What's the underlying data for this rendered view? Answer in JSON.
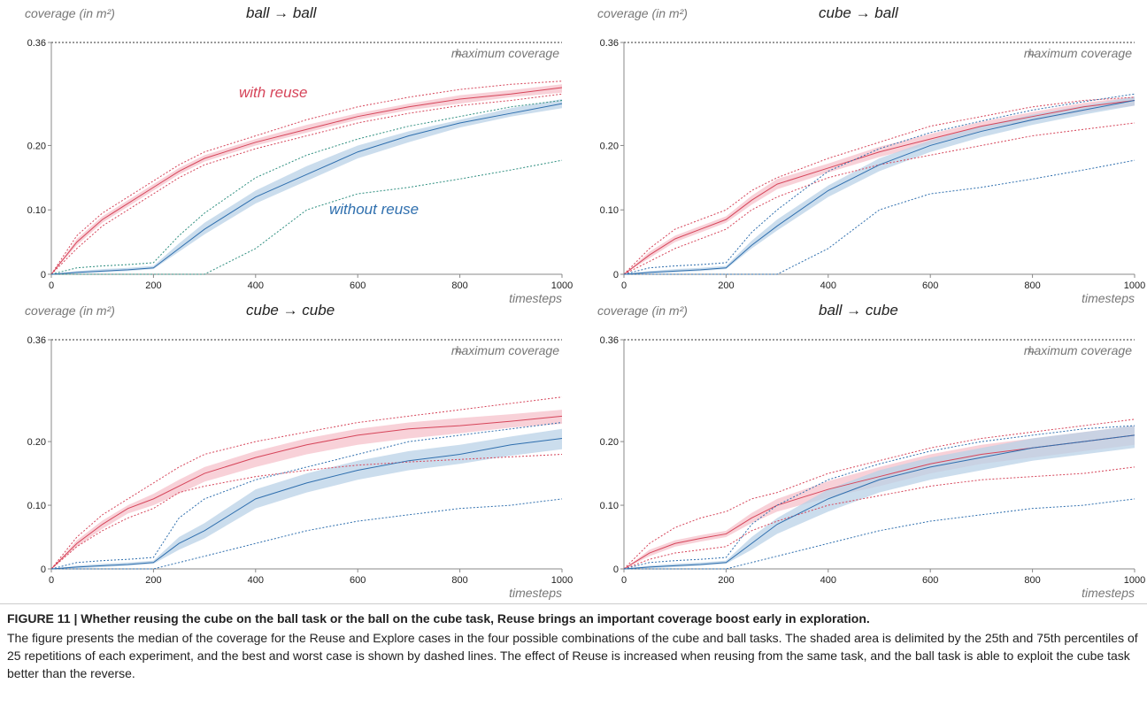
{
  "chart_data": [
    {
      "type": "line",
      "title": "ball → ball",
      "ylabel": "coverage (in m²)",
      "xlabel": "timesteps",
      "annotation": "maximum coverage",
      "x": [
        0,
        50,
        100,
        150,
        200,
        250,
        300,
        400,
        500,
        600,
        700,
        800,
        900,
        1000
      ],
      "xlim": [
        0,
        1000
      ],
      "ylim": [
        0,
        0.36
      ],
      "xticks": [
        0,
        200,
        400,
        600,
        800,
        1000
      ],
      "yticks": [
        0,
        {
          "value": 0.1,
          "label": "0.10"
        },
        {
          "value": 0.2,
          "label": "0.20"
        },
        0.36
      ],
      "series": [
        {
          "label": "with reuse",
          "color": "#d6455a",
          "band_color": "#f5c2cb",
          "dash_color": "#d6455a",
          "values": [
            0,
            0.05,
            0.085,
            0.11,
            0.135,
            0.16,
            0.18,
            0.205,
            0.225,
            0.245,
            0.26,
            0.272,
            0.28,
            0.29
          ],
          "p25": [
            0,
            0.045,
            0.08,
            0.105,
            0.13,
            0.155,
            0.175,
            0.2,
            0.22,
            0.24,
            0.255,
            0.265,
            0.275,
            0.282
          ],
          "p75": [
            0,
            0.055,
            0.09,
            0.115,
            0.14,
            0.165,
            0.185,
            0.21,
            0.232,
            0.25,
            0.265,
            0.278,
            0.286,
            0.295
          ],
          "best": [
            0,
            0.06,
            0.095,
            0.12,
            0.145,
            0.17,
            0.19,
            0.215,
            0.24,
            0.26,
            0.275,
            0.287,
            0.295,
            0.3
          ],
          "worst": [
            0,
            0.04,
            0.075,
            0.1,
            0.125,
            0.15,
            0.17,
            0.195,
            0.215,
            0.235,
            0.25,
            0.262,
            0.27,
            0.28
          ]
        },
        {
          "label": "without reuse",
          "color": "#2f6fae",
          "band_color": "#b9d1e7",
          "dash_color": "#2f8f80",
          "values": [
            0,
            0.003,
            0.005,
            0.007,
            0.01,
            0.04,
            0.07,
            0.12,
            0.155,
            0.19,
            0.215,
            0.235,
            0.25,
            0.265
          ],
          "p25": [
            0,
            0.001,
            0.003,
            0.005,
            0.008,
            0.035,
            0.062,
            0.11,
            0.145,
            0.18,
            0.205,
            0.228,
            0.245,
            0.258
          ],
          "p75": [
            0,
            0.005,
            0.008,
            0.01,
            0.013,
            0.048,
            0.08,
            0.13,
            0.168,
            0.2,
            0.222,
            0.24,
            0.258,
            0.272
          ],
          "best": [
            0,
            0.01,
            0.013,
            0.015,
            0.018,
            0.06,
            0.095,
            0.15,
            0.185,
            0.21,
            0.23,
            0.245,
            0.26,
            0.27
          ],
          "worst": [
            0,
            0,
            0,
            0,
            0,
            0,
            0,
            0.04,
            0.1,
            0.125,
            0.135,
            0.148,
            0.162,
            0.177
          ]
        }
      ]
    },
    {
      "type": "line",
      "title": "cube → ball",
      "ylabel": "coverage (in m²)",
      "xlabel": "timesteps",
      "annotation": "maximum coverage",
      "x": [
        0,
        50,
        100,
        150,
        200,
        250,
        300,
        400,
        500,
        600,
        700,
        800,
        900,
        1000
      ],
      "xlim": [
        0,
        1000
      ],
      "ylim": [
        0,
        0.36
      ],
      "xticks": [
        0,
        200,
        400,
        600,
        800,
        1000
      ],
      "yticks": [
        0,
        {
          "value": 0.1,
          "label": "0.10"
        },
        {
          "value": 0.2,
          "label": "0.20"
        },
        0.36
      ],
      "series": [
        {
          "color": "#d6455a",
          "band_color": "#f5c2cb",
          "dash_color": "#d6455a",
          "values": [
            0,
            0.03,
            0.055,
            0.07,
            0.085,
            0.115,
            0.14,
            0.165,
            0.19,
            0.21,
            0.23,
            0.245,
            0.26,
            0.27
          ],
          "p25": [
            0,
            0.025,
            0.05,
            0.065,
            0.08,
            0.108,
            0.132,
            0.158,
            0.182,
            0.202,
            0.222,
            0.238,
            0.252,
            0.262
          ],
          "p75": [
            0,
            0.035,
            0.06,
            0.075,
            0.09,
            0.122,
            0.148,
            0.172,
            0.198,
            0.218,
            0.237,
            0.252,
            0.266,
            0.276
          ],
          "best": [
            0,
            0.04,
            0.07,
            0.085,
            0.1,
            0.13,
            0.15,
            0.18,
            0.205,
            0.23,
            0.245,
            0.26,
            0.27,
            0.275
          ],
          "worst": [
            0,
            0.02,
            0.04,
            0.055,
            0.07,
            0.1,
            0.12,
            0.15,
            0.17,
            0.185,
            0.2,
            0.215,
            0.225,
            0.235
          ]
        },
        {
          "color": "#2f6fae",
          "band_color": "#b9d1e7",
          "dash_color": "#2f6fae",
          "values": [
            0,
            0.003,
            0.005,
            0.007,
            0.01,
            0.045,
            0.075,
            0.13,
            0.17,
            0.2,
            0.222,
            0.24,
            0.255,
            0.27
          ],
          "p25": [
            0,
            0.001,
            0.003,
            0.005,
            0.008,
            0.04,
            0.068,
            0.12,
            0.16,
            0.19,
            0.213,
            0.232,
            0.248,
            0.262
          ],
          "p75": [
            0,
            0.005,
            0.008,
            0.01,
            0.013,
            0.052,
            0.085,
            0.138,
            0.18,
            0.208,
            0.23,
            0.248,
            0.262,
            0.276
          ],
          "best": [
            0,
            0.01,
            0.013,
            0.015,
            0.018,
            0.065,
            0.1,
            0.16,
            0.195,
            0.22,
            0.238,
            0.255,
            0.268,
            0.28
          ],
          "worst": [
            0,
            0,
            0,
            0,
            0,
            0,
            0,
            0.04,
            0.1,
            0.125,
            0.135,
            0.148,
            0.162,
            0.177
          ]
        }
      ]
    },
    {
      "type": "line",
      "title": "cube → cube",
      "ylabel": "coverage (in m²)",
      "xlabel": "timesteps",
      "annotation": "maximum coverage",
      "x": [
        0,
        50,
        100,
        150,
        200,
        250,
        300,
        400,
        500,
        600,
        700,
        800,
        900,
        1000
      ],
      "xlim": [
        0,
        1000
      ],
      "ylim": [
        0,
        0.36
      ],
      "xticks": [
        0,
        200,
        400,
        600,
        800,
        1000
      ],
      "yticks": [
        0,
        {
          "value": 0.1,
          "label": "0.10"
        },
        {
          "value": 0.2,
          "label": "0.20"
        },
        0.36
      ],
      "series": [
        {
          "color": "#d6455a",
          "band_color": "#f5c2cb",
          "dash_color": "#d6455a",
          "values": [
            0,
            0.04,
            0.07,
            0.095,
            0.11,
            0.13,
            0.15,
            0.175,
            0.195,
            0.21,
            0.22,
            0.225,
            0.232,
            0.24
          ],
          "p25": [
            0,
            0.035,
            0.063,
            0.087,
            0.1,
            0.118,
            0.137,
            0.16,
            0.18,
            0.195,
            0.205,
            0.213,
            0.222,
            0.228
          ],
          "p75": [
            0,
            0.045,
            0.076,
            0.1,
            0.118,
            0.14,
            0.16,
            0.185,
            0.205,
            0.22,
            0.23,
            0.237,
            0.243,
            0.25
          ],
          "best": [
            0,
            0.05,
            0.085,
            0.11,
            0.135,
            0.16,
            0.18,
            0.2,
            0.215,
            0.23,
            0.24,
            0.25,
            0.26,
            0.27
          ],
          "worst": [
            0,
            0.035,
            0.06,
            0.08,
            0.095,
            0.12,
            0.13,
            0.145,
            0.155,
            0.163,
            0.168,
            0.172,
            0.176,
            0.18
          ]
        },
        {
          "color": "#2f6fae",
          "band_color": "#b9d1e7",
          "dash_color": "#2f6fae",
          "values": [
            0,
            0.003,
            0.005,
            0.007,
            0.01,
            0.04,
            0.06,
            0.11,
            0.135,
            0.155,
            0.17,
            0.18,
            0.195,
            0.205
          ],
          "p25": [
            0,
            0.001,
            0.003,
            0.005,
            0.008,
            0.03,
            0.048,
            0.095,
            0.12,
            0.14,
            0.155,
            0.165,
            0.178,
            0.188
          ],
          "p75": [
            0,
            0.005,
            0.008,
            0.01,
            0.013,
            0.05,
            0.072,
            0.125,
            0.15,
            0.17,
            0.185,
            0.195,
            0.208,
            0.22
          ],
          "best": [
            0,
            0.01,
            0.013,
            0.015,
            0.018,
            0.08,
            0.11,
            0.14,
            0.16,
            0.18,
            0.2,
            0.21,
            0.22,
            0.23
          ],
          "worst": [
            0,
            0,
            0,
            0,
            0,
            0.01,
            0.02,
            0.04,
            0.06,
            0.075,
            0.085,
            0.095,
            0.1,
            0.11
          ]
        }
      ]
    },
    {
      "type": "line",
      "title": "ball → cube",
      "ylabel": "coverage (in m²)",
      "xlabel": "timesteps",
      "annotation": "maximum coverage",
      "x": [
        0,
        50,
        100,
        150,
        200,
        250,
        300,
        400,
        500,
        600,
        700,
        800,
        900,
        1000
      ],
      "xlim": [
        0,
        1000
      ],
      "ylim": [
        0,
        0.36
      ],
      "xticks": [
        0,
        200,
        400,
        600,
        800,
        1000
      ],
      "yticks": [
        0,
        {
          "value": 0.1,
          "label": "0.10"
        },
        {
          "value": 0.2,
          "label": "0.20"
        },
        0.36
      ],
      "series": [
        {
          "color": "#d6455a",
          "band_color": "#f5c2cb",
          "dash_color": "#d6455a",
          "values": [
            0,
            0.025,
            0.04,
            0.048,
            0.055,
            0.08,
            0.1,
            0.125,
            0.145,
            0.165,
            0.18,
            0.19,
            0.2,
            0.21
          ],
          "p25": [
            0,
            0.02,
            0.035,
            0.043,
            0.05,
            0.072,
            0.09,
            0.112,
            0.13,
            0.15,
            0.165,
            0.175,
            0.185,
            0.195
          ],
          "p75": [
            0,
            0.03,
            0.045,
            0.053,
            0.06,
            0.088,
            0.11,
            0.138,
            0.16,
            0.18,
            0.195,
            0.205,
            0.215,
            0.225
          ],
          "best": [
            0,
            0.04,
            0.065,
            0.08,
            0.09,
            0.11,
            0.12,
            0.15,
            0.17,
            0.19,
            0.205,
            0.215,
            0.225,
            0.235
          ],
          "worst": [
            0,
            0.015,
            0.025,
            0.03,
            0.035,
            0.06,
            0.075,
            0.1,
            0.115,
            0.13,
            0.14,
            0.145,
            0.15,
            0.16
          ]
        },
        {
          "color": "#2f6fae",
          "band_color": "#b9d1e7",
          "dash_color": "#2f6fae",
          "values": [
            0,
            0.003,
            0.005,
            0.007,
            0.01,
            0.04,
            0.07,
            0.11,
            0.14,
            0.16,
            0.175,
            0.19,
            0.2,
            0.21
          ],
          "p25": [
            0,
            0.001,
            0.003,
            0.005,
            0.008,
            0.03,
            0.055,
            0.09,
            0.12,
            0.14,
            0.155,
            0.17,
            0.18,
            0.19
          ],
          "p75": [
            0,
            0.005,
            0.008,
            0.01,
            0.013,
            0.05,
            0.08,
            0.125,
            0.155,
            0.175,
            0.19,
            0.205,
            0.215,
            0.225
          ],
          "best": [
            0,
            0.01,
            0.013,
            0.015,
            0.018,
            0.07,
            0.1,
            0.14,
            0.165,
            0.185,
            0.2,
            0.21,
            0.22,
            0.225
          ],
          "worst": [
            0,
            0,
            0,
            0,
            0,
            0.01,
            0.02,
            0.04,
            0.06,
            0.075,
            0.085,
            0.095,
            0.1,
            0.11
          ]
        }
      ]
    }
  ],
  "caption": {
    "title": "FIGURE 11 | Whether reusing the cube on the ball task or the ball on the cube task, Reuse brings an important coverage boost early in exploration.",
    "text": "The figure presents the median of the coverage for the Reuse and Explore cases in the four possible combinations of the cube and ball tasks. The shaded area is delimited by the 25th and 75th percentiles of 25 repetitions of each experiment, and the best and worst case is shown by dashed lines. The effect of Reuse is increased when reusing from the same task, and the ball task is able to exploit the cube task better than the reverse."
  }
}
